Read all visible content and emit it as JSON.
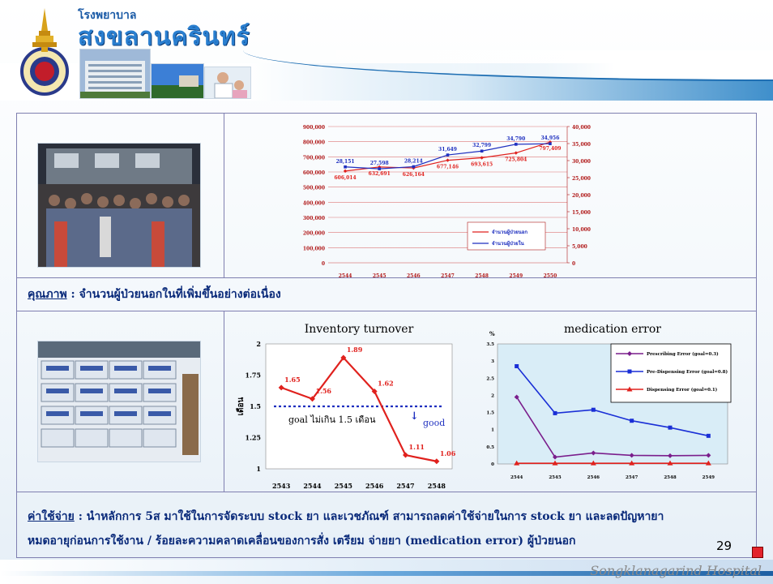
{
  "header": {
    "title_small": "โรงพยาบาล",
    "title_big": "สงขลานครินทร์"
  },
  "top_chart": {
    "type": "line",
    "categories": [
      "2544",
      "2545",
      "2546",
      "2547",
      "2548",
      "2549",
      "2550"
    ],
    "left_axis_ticks": [
      "0",
      "100,000",
      "200,000",
      "300,000",
      "400,000",
      "500,000",
      "600,000",
      "700,000",
      "800,000",
      "900,000"
    ],
    "right_axis_ticks": [
      "0",
      "5,000",
      "10,000",
      "15,000",
      "20,000",
      "25,000",
      "30,000",
      "35,000",
      "40,000"
    ],
    "series": [
      {
        "name": "จำนวนผู้ป่วยนอก",
        "axis": "left",
        "color": "#e0211d",
        "values": [
          606014,
          632691,
          626164,
          677146,
          693615,
          725804,
          797409
        ],
        "labels": [
          "606,014",
          "632,691",
          "626,164",
          "677,146",
          "693,615",
          "725,804",
          "797,409"
        ]
      },
      {
        "name": "จำนวนผู้ป่วยใน",
        "axis": "right",
        "color": "#1e2fbf",
        "values": [
          28151,
          27598,
          28214,
          31649,
          32799,
          34790,
          34956
        ],
        "labels": [
          "28,151",
          "27,598",
          "28,214",
          "31,649",
          "32,799",
          "34,790",
          "34,956"
        ]
      }
    ],
    "ylim_left": [
      0,
      900000
    ],
    "ylim_right": [
      0,
      40000
    ]
  },
  "quality_caption": {
    "label": "คุณภาพ",
    "text": " : จำนวนผู้ป่วยนอกในที่เพิ่มขึ้นอย่างต่อเนื่อง"
  },
  "inventory_chart": {
    "type": "line",
    "title": "Inventory turnover",
    "ylabel": "เดือน",
    "categories": [
      "2543",
      "2544",
      "2545",
      "2546",
      "2547",
      "2548"
    ],
    "values": [
      1.65,
      1.56,
      1.89,
      1.62,
      1.11,
      1.06
    ],
    "labels": [
      "1.65",
      "1.56",
      "1.89",
      "1.62",
      "1.11",
      "1.06"
    ],
    "y_ticks": [
      "1",
      "1.25",
      "1.5",
      "1.75",
      "2"
    ],
    "ylim": [
      1,
      2
    ],
    "goal_value": 1.5,
    "goal_label": "goal ไม่เกิน 1.5 เดือน",
    "good_label": "good",
    "good_arrow": "↓",
    "color": "#e0211d"
  },
  "med_error_chart": {
    "type": "line",
    "title": "medication error",
    "ylabel": "%",
    "categories": [
      "2544",
      "2545",
      "2546",
      "2547",
      "2548",
      "2549"
    ],
    "y_ticks": [
      "0",
      "0.5",
      "1",
      "1.5",
      "2",
      "2.5",
      "3",
      "3.5"
    ],
    "ylim": [
      0,
      3.5
    ],
    "series": [
      {
        "name": "Prescribing Error  (goal=0.3)",
        "color": "#7a1e8c",
        "values": [
          1.95,
          0.2,
          0.32,
          0.25,
          0.24,
          0.25
        ]
      },
      {
        "name": "Pre-Dispensing Error (goal=0.8)",
        "color": "#1a2fd6",
        "values": [
          2.85,
          1.48,
          1.58,
          1.26,
          1.06,
          0.82
        ]
      },
      {
        "name": "Dispensing Error (goal=0.1)",
        "color": "#e0211d",
        "values": [
          0.02,
          0.02,
          0.02,
          0.02,
          0.02,
          0.02
        ]
      }
    ]
  },
  "cost_caption": {
    "label": "ค่าใช้จ่าย",
    "line1": " : นำหลักการ 5ส มาใช้ในการจัดระบบ stock ยา และเวชภัณฑ์ สามารถลดค่าใช้จ่ายในการ stock ยา และลดปัญหายา",
    "line2": "หมดอายุก่อนการใช้งาน / ร้อยละความคลาดเคลื่อนของการสั่ง เตรียม จ่ายยา (medication error) ผู้ป่วยนอก"
  },
  "page_number": "29",
  "footer_text": "Songklanagarind Hospital"
}
